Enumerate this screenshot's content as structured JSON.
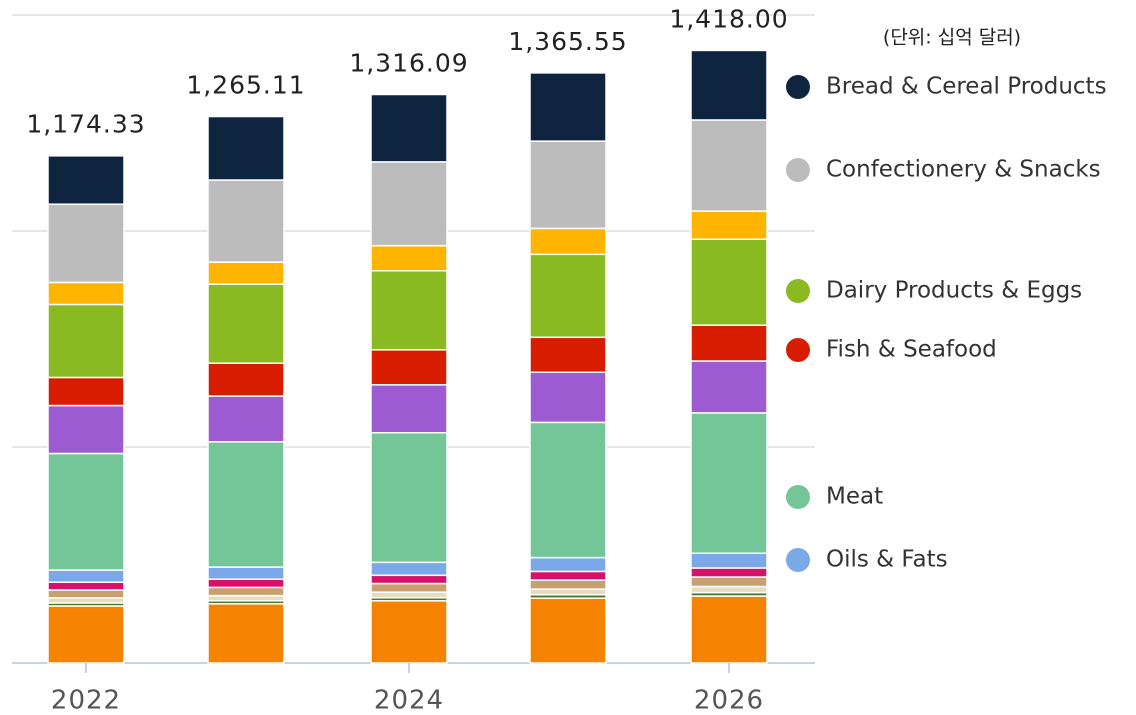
{
  "chart_data": {
    "type": "stacked_bar",
    "note": "(단위: 십억 달러)",
    "categories": [
      "2022",
      null,
      "2024",
      null,
      "2026"
    ],
    "ylim": [
      0,
      1500
    ],
    "grid_lines": [
      500,
      1000,
      1500
    ],
    "totals": [
      1174.33,
      1265.11,
      1316.09,
      1365.55,
      1418.0
    ],
    "value_labels": [
      "1,174.33",
      "1,265.11",
      "1,316.09",
      "1,365.55",
      "1,418.00"
    ],
    "series": [
      {
        "color": "#f58200",
        "values": [
          132,
          137,
          144,
          150,
          155
        ]
      },
      {
        "color": "#4a7a2a",
        "values": [
          7,
          7,
          7,
          8,
          8
        ]
      },
      {
        "color": "#e8dcc0",
        "values": [
          12,
          12,
          13,
          13,
          14
        ]
      },
      {
        "color": "#c8a070",
        "values": [
          18,
          19,
          20,
          21,
          22
        ]
      },
      {
        "color": "#d8106a",
        "values": [
          18,
          19,
          19,
          20,
          21
        ]
      },
      {
        "name": "Oils & Fats",
        "color": "#7aa8e8",
        "values": [
          28,
          28,
          30,
          32,
          34
        ]
      },
      {
        "name": "Meat",
        "color": "#74c698",
        "values": [
          270,
          290,
          300,
          313,
          325
        ]
      },
      {
        "color": "#9c5bd0",
        "values": [
          111,
          106,
          111,
          116,
          120
        ]
      },
      {
        "name": "Fish & Seafood",
        "color": "#d81c00",
        "values": [
          65,
          76,
          81,
          81,
          83
        ]
      },
      {
        "name": "Dairy Products & Eggs",
        "color": "#8aba22",
        "values": [
          169,
          183,
          183,
          192,
          199
        ]
      },
      {
        "color": "#ffb400",
        "values": [
          51,
          51,
          58,
          60,
          65
        ]
      },
      {
        "name": "Confectionery & Snacks",
        "color": "#bcbcbc",
        "values": [
          181,
          190,
          194,
          202,
          211
        ]
      },
      {
        "name": "Bread & Cereal Products",
        "color": "#0f243e",
        "values": [
          112,
          147,
          156,
          158,
          161
        ]
      }
    ]
  }
}
